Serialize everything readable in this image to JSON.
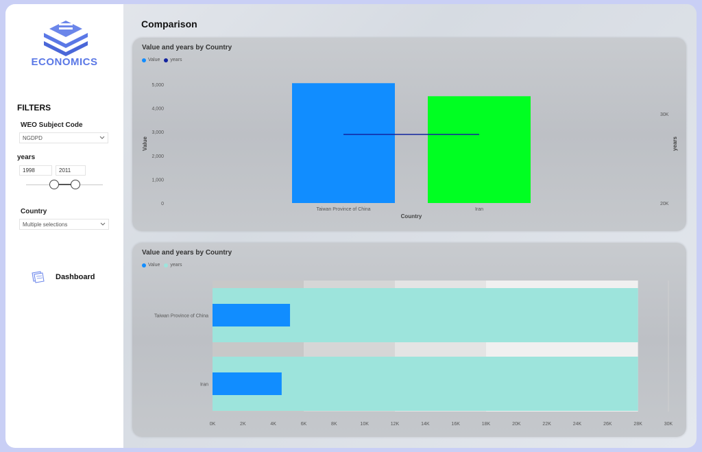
{
  "sidebar": {
    "logo_text": "ECONOMICS",
    "filters_title": "FILTERS",
    "subject_label": "WEO Subject Code",
    "subject_value": "NGDPD",
    "years_label": "years",
    "year_start": "1998",
    "year_end": "2011",
    "country_label": "Country",
    "country_value": "Multiple selections",
    "nav_dashboard": "Dashboard"
  },
  "page_title": "Comparison",
  "colors": {
    "value": "#118dff",
    "years_line": "#12239e",
    "iran_bar": "#00ff22",
    "years_bar": "#9de4dc"
  },
  "chart1": {
    "title": "Value and years by Country",
    "legend": [
      "Value",
      "years"
    ],
    "xlabel": "Country",
    "ylabel_left": "Value",
    "ylabel_right": "years",
    "y_ticks": [
      "5,000",
      "4,000",
      "3,000",
      "2,000",
      "1,000",
      "0"
    ],
    "y2_ticks": [
      "30K",
      "20K"
    ],
    "categories": [
      "Taiwan Province of China",
      "Iran"
    ]
  },
  "chart2": {
    "title": "Value and years by Country",
    "legend": [
      "Value",
      "years"
    ],
    "categories": [
      "Taiwan Province of China",
      "Iran"
    ],
    "x_ticks": [
      "0K",
      "2K",
      "4K",
      "6K",
      "8K",
      "10K",
      "12K",
      "14K",
      "16K",
      "18K",
      "20K",
      "22K",
      "24K",
      "26K",
      "28K",
      "30K"
    ]
  },
  "chart_data": [
    {
      "type": "bar",
      "title": "Value and years by Country",
      "categories": [
        "Taiwan Province of China",
        "Iran"
      ],
      "series": [
        {
          "name": "Value",
          "values": [
            5050,
            4500
          ]
        },
        {
          "name": "years",
          "values": [
            28000,
            28000
          ]
        }
      ],
      "xlabel": "Country",
      "ylabel": "Value",
      "ylim": [
        0,
        5000
      ],
      "y2label": "years",
      "y2lim": [
        20000,
        30000
      ]
    },
    {
      "type": "bar",
      "title": "Value and years by Country",
      "categories": [
        "Taiwan Province of China",
        "Iran"
      ],
      "series": [
        {
          "name": "Value",
          "values": [
            5100,
            4550
          ]
        },
        {
          "name": "years",
          "values": [
            28000,
            28000
          ]
        }
      ],
      "xlim": [
        0,
        30000
      ]
    }
  ]
}
